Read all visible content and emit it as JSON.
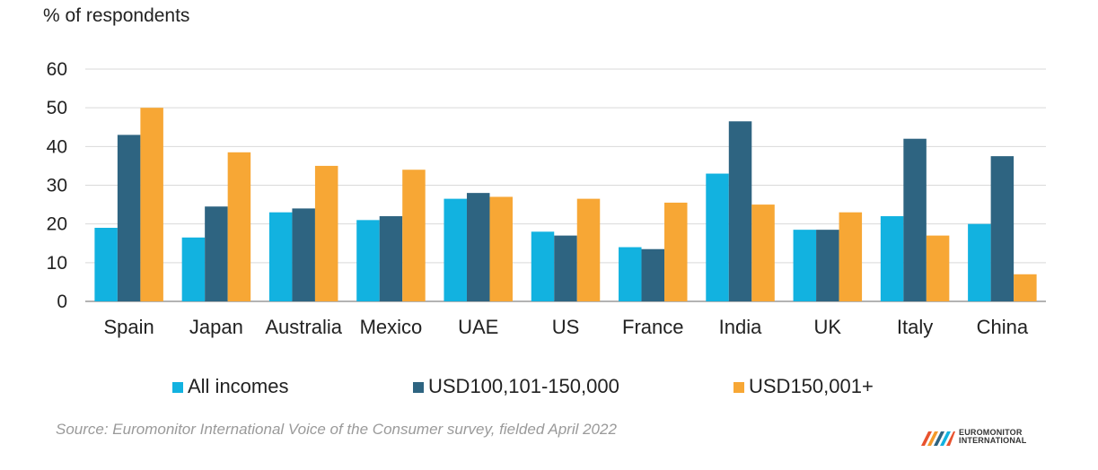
{
  "chart_data": {
    "type": "bar",
    "ylabel": "% of respondents",
    "ylim": [
      0,
      60
    ],
    "yticks": [
      0,
      10,
      20,
      30,
      40,
      50,
      60
    ],
    "grid": true,
    "legend_position": "bottom",
    "categories": [
      "Spain",
      "Japan",
      "Australia",
      "Mexico",
      "UAE",
      "US",
      "France",
      "India",
      "UK",
      "Italy",
      "China"
    ],
    "series": [
      {
        "name": "All incomes",
        "color": "#12b2e0",
        "values": [
          19,
          16.5,
          23,
          21,
          26.5,
          18,
          14,
          33,
          18.5,
          22,
          20
        ]
      },
      {
        "name": "USD100,101-150,000",
        "color": "#2e6481",
        "values": [
          43,
          24.5,
          24,
          22,
          28,
          17,
          13.5,
          46.5,
          18.5,
          42,
          37.5
        ]
      },
      {
        "name": "USD150,001+",
        "color": "#f7a735",
        "values": [
          50,
          38.5,
          35,
          34,
          27,
          26.5,
          25.5,
          25,
          23,
          17,
          7
        ]
      }
    ]
  },
  "source": "Source: Euromonitor International Voice of the Consumer survey, fielded April 2022",
  "logo": {
    "line1": "EUROMONITOR",
    "line2": "INTERNATIONAL"
  }
}
